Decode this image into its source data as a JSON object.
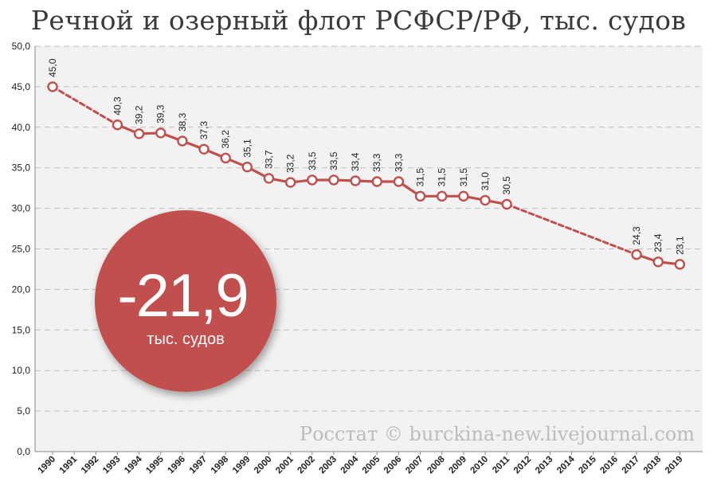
{
  "chart_data": {
    "type": "line",
    "title": "Речной и озерный флот РСФСР/РФ, тыс. судов",
    "xlabel": "",
    "ylabel": "",
    "ylim": [
      0,
      50
    ],
    "y_ticks": [
      "0,0",
      "5,0",
      "10,0",
      "15,0",
      "20,0",
      "25,0",
      "30,0",
      "35,0",
      "40,0",
      "45,0",
      "50,0"
    ],
    "grid": true,
    "legend": "none",
    "categories": [
      "1990",
      "1991",
      "1992",
      "1993",
      "1994",
      "1995",
      "1996",
      "1997",
      "1998",
      "1999",
      "2000",
      "2001",
      "2002",
      "2003",
      "2004",
      "2005",
      "2006",
      "2007",
      "2008",
      "2009",
      "2010",
      "2011",
      "2012",
      "2013",
      "2014",
      "2015",
      "2016",
      "2017",
      "2018",
      "2019"
    ],
    "series": [
      {
        "values": [
          45.0,
          null,
          null,
          40.3,
          39.2,
          39.3,
          38.3,
          37.3,
          36.2,
          35.1,
          33.7,
          33.2,
          33.5,
          33.5,
          33.4,
          33.3,
          33.3,
          31.5,
          31.5,
          31.5,
          31.0,
          30.5,
          null,
          null,
          null,
          null,
          null,
          24.3,
          23.4,
          23.1
        ],
        "labels": [
          "45,0",
          "",
          "",
          "40,3",
          "39,2",
          "39,3",
          "38,3",
          "37,3",
          "36,2",
          "35,1",
          "33,7",
          "33,2",
          "33,5",
          "33,5",
          "33,4",
          "33,3",
          "33,3",
          "31,5",
          "31,5",
          "31,5",
          "31,0",
          "30,5",
          "",
          "",
          "",
          "",
          "",
          "24,3",
          "23,4",
          "23,1"
        ]
      }
    ],
    "annotations": {
      "change_value": "-21,9",
      "change_unit": "тыс. судов",
      "source": "Росстат © burckina-new.livejournal.com"
    },
    "colors": {
      "line": "#c0504d",
      "bubble": "#c0504d",
      "plot_bg": "#f2f2f2",
      "grid": "#bfbfbf"
    }
  }
}
